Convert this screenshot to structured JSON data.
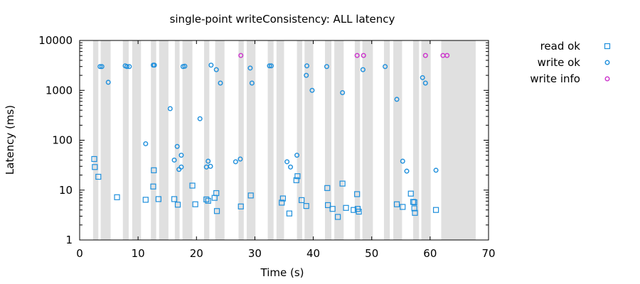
{
  "chart_data": {
    "type": "scatter",
    "title": "single-point writeConsistency: ALL latency",
    "xlabel": "Time (s)",
    "ylabel": "Latency (ms)",
    "xlim": [
      0,
      70
    ],
    "ylim": [
      1,
      10000
    ],
    "y_scale": "log",
    "x_ticks": [
      "0",
      "10",
      "20",
      "30",
      "40",
      "50",
      "60",
      "70"
    ],
    "y_ticks": [
      "1",
      "10",
      "100",
      "1000",
      "10000"
    ],
    "grid": false,
    "legend_position": "outside-right",
    "bands_color": "#e0e0e0",
    "bands": [
      [
        2.3,
        3.2
      ],
      [
        3.6,
        5.3
      ],
      [
        7.4,
        8.4
      ],
      [
        9.0,
        10.5
      ],
      [
        12.2,
        13.1
      ],
      [
        13.6,
        15.2
      ],
      [
        16.3,
        17.1
      ],
      [
        17.6,
        19.3
      ],
      [
        21.3,
        22.2
      ],
      [
        23.2,
        24.8
      ],
      [
        27.2,
        28.1
      ],
      [
        28.6,
        30.1
      ],
      [
        32.2,
        33.2
      ],
      [
        33.7,
        35.0
      ],
      [
        37.2,
        38.1
      ],
      [
        38.5,
        40.0
      ],
      [
        42.0,
        43.1
      ],
      [
        43.6,
        45.2
      ],
      [
        47.1,
        48.0
      ],
      [
        48.4,
        50.2
      ],
      [
        52.1,
        53.1
      ],
      [
        53.7,
        55.2
      ],
      [
        57.1,
        58.1
      ],
      [
        58.5,
        60.1
      ],
      [
        61.9,
        67.8
      ]
    ],
    "series": [
      {
        "name": "read ok",
        "marker": "square",
        "color": "#1e8fdc",
        "points": [
          [
            2.5,
            42
          ],
          [
            2.6,
            29
          ],
          [
            3.2,
            18.5
          ],
          [
            6.4,
            7.2
          ],
          [
            11.3,
            6.4
          ],
          [
            12.6,
            11.8
          ],
          [
            12.7,
            25
          ],
          [
            13.5,
            6.6
          ],
          [
            16.2,
            6.6
          ],
          [
            16.8,
            5.1
          ],
          [
            19.3,
            12.3
          ],
          [
            19.8,
            5.2
          ],
          [
            21.7,
            6.5
          ],
          [
            22.0,
            6.1
          ],
          [
            23.1,
            7.0
          ],
          [
            23.4,
            8.7
          ],
          [
            23.5,
            3.8
          ],
          [
            27.6,
            4.7
          ],
          [
            29.3,
            7.8
          ],
          [
            34.6,
            5.6
          ],
          [
            34.8,
            6.8
          ],
          [
            35.9,
            3.4
          ],
          [
            37.1,
            15.8
          ],
          [
            37.3,
            19.0
          ],
          [
            38.0,
            6.3
          ],
          [
            38.8,
            4.8
          ],
          [
            42.4,
            11.0
          ],
          [
            42.5,
            5.0
          ],
          [
            43.3,
            4.2
          ],
          [
            44.2,
            2.9
          ],
          [
            45.0,
            13.5
          ],
          [
            45.6,
            4.4
          ],
          [
            46.9,
            4.0
          ],
          [
            47.5,
            8.3
          ],
          [
            47.6,
            4.2
          ],
          [
            47.8,
            3.7
          ],
          [
            54.3,
            5.2
          ],
          [
            55.3,
            4.6
          ],
          [
            56.7,
            8.5
          ],
          [
            57.1,
            5.8
          ],
          [
            57.3,
            5.7
          ],
          [
            57.3,
            4.3
          ],
          [
            57.4,
            3.5
          ],
          [
            61.0,
            4.0
          ]
        ]
      },
      {
        "name": "write ok",
        "marker": "circle",
        "color": "#1e8fdc",
        "points": [
          [
            3.5,
            3000
          ],
          [
            3.8,
            3000
          ],
          [
            4.9,
            1450
          ],
          [
            7.8,
            3100
          ],
          [
            8.1,
            3000
          ],
          [
            8.5,
            3000
          ],
          [
            11.3,
            85
          ],
          [
            12.6,
            3200
          ],
          [
            12.8,
            3200
          ],
          [
            15.5,
            430
          ],
          [
            16.2,
            40
          ],
          [
            16.7,
            75
          ],
          [
            17.0,
            26
          ],
          [
            17.4,
            29
          ],
          [
            17.4,
            50
          ],
          [
            17.7,
            3000
          ],
          [
            18.0,
            3050
          ],
          [
            20.6,
            270
          ],
          [
            21.7,
            29
          ],
          [
            22.0,
            38
          ],
          [
            22.4,
            30
          ],
          [
            22.5,
            3200
          ],
          [
            23.4,
            2600
          ],
          [
            24.1,
            1400
          ],
          [
            26.7,
            37
          ],
          [
            27.5,
            42
          ],
          [
            29.2,
            2800
          ],
          [
            29.5,
            1400
          ],
          [
            32.5,
            3100
          ],
          [
            32.8,
            3100
          ],
          [
            35.5,
            37
          ],
          [
            36.1,
            29
          ],
          [
            37.2,
            50
          ],
          [
            38.8,
            2000
          ],
          [
            38.9,
            3100
          ],
          [
            39.8,
            1000
          ],
          [
            42.3,
            3000
          ],
          [
            45.0,
            900
          ],
          [
            48.5,
            2600
          ],
          [
            52.3,
            3000
          ],
          [
            54.3,
            660
          ],
          [
            55.3,
            38
          ],
          [
            56.0,
            24
          ],
          [
            58.7,
            1800
          ],
          [
            59.2,
            1400
          ],
          [
            61.0,
            25
          ]
        ]
      },
      {
        "name": "write info",
        "marker": "circle",
        "color": "#cc33cc",
        "points": [
          [
            27.6,
            5000
          ],
          [
            47.5,
            5000
          ],
          [
            48.6,
            5000
          ],
          [
            59.2,
            5000
          ],
          [
            62.2,
            5000
          ],
          [
            62.9,
            5000
          ]
        ]
      }
    ]
  }
}
